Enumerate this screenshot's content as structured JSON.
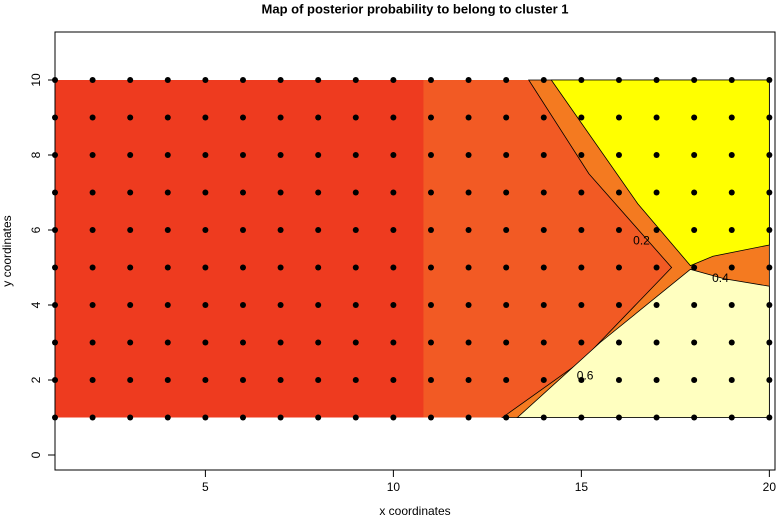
{
  "chart_data": {
    "type": "scatter",
    "title": "Map of posterior probability to belong to cluster  1",
    "x_label": "x coordinates",
    "y_label": "y coordinates",
    "xlim": [
      1,
      20.15
    ],
    "ylim": [
      -0.4,
      11.28
    ],
    "xticks": [
      5,
      10,
      15,
      20
    ],
    "yticks": [
      0,
      2,
      4,
      6,
      8,
      10
    ],
    "regions": [
      {
        "color": "#ee3b1f",
        "x": [
          1,
          20,
          20,
          1
        ],
        "y": [
          1,
          1,
          10,
          10
        ]
      },
      {
        "color": "#f25a24",
        "x": [
          10.8,
          20,
          20,
          10.8
        ],
        "y": [
          1,
          1,
          10,
          10
        ]
      },
      {
        "color": "#f47a20",
        "x": [
          13.6,
          20,
          20,
          12.9,
          15,
          17.4,
          15.2
        ],
        "y": [
          10,
          10,
          1,
          1,
          2.5,
          5,
          7.5
        ]
      },
      {
        "color": "#ffff00",
        "x": [
          14.2,
          20,
          20,
          18.5,
          17.9,
          16.5
        ],
        "y": [
          10,
          10,
          5.6,
          5.3,
          5.05,
          6.7
        ]
      },
      {
        "color": "#ffffc0",
        "x": [
          13.3,
          20,
          20,
          18.8,
          17.9,
          15.5
        ],
        "y": [
          1,
          1,
          4.5,
          4.7,
          4.95,
          3
        ]
      }
    ],
    "contour_labels": [
      {
        "text": "0.4",
        "x": 18.7,
        "y": 4.7
      },
      {
        "text": "0.2",
        "x": 16.6,
        "y": 5.7
      },
      {
        "text": "0.6",
        "x": 15.1,
        "y": 2.1
      }
    ],
    "series": [
      {
        "color": "#000000",
        "x": [
          1,
          2,
          3,
          4,
          5,
          6,
          7,
          8,
          9,
          10,
          11,
          12,
          13,
          14,
          15,
          16,
          17,
          18,
          19,
          20,
          1,
          2,
          3,
          4,
          5,
          6,
          7,
          8,
          9,
          10,
          11,
          12,
          13,
          14,
          15,
          16,
          17,
          18,
          19,
          20,
          1,
          2,
          3,
          4,
          5,
          6,
          7,
          8,
          9,
          10,
          11,
          12,
          13,
          14,
          15,
          16,
          17,
          18,
          19,
          20,
          1,
          2,
          3,
          4,
          5,
          6,
          7,
          8,
          9,
          10,
          11,
          12,
          13,
          14,
          15,
          16,
          17,
          18,
          19,
          20,
          1,
          2,
          3,
          4,
          5,
          6,
          7,
          8,
          9,
          10,
          11,
          12,
          13,
          14,
          15,
          16,
          17,
          18,
          19,
          20,
          1,
          2,
          3,
          4,
          5,
          6,
          7,
          8,
          9,
          10,
          11,
          12,
          13,
          14,
          15,
          16,
          17,
          18,
          19,
          20,
          1,
          2,
          3,
          4,
          5,
          6,
          7,
          8,
          9,
          10,
          11,
          12,
          13,
          14,
          15,
          16,
          17,
          18,
          19,
          20,
          1,
          2,
          3,
          4,
          5,
          6,
          7,
          8,
          9,
          10,
          11,
          12,
          13,
          14,
          15,
          16,
          17,
          18,
          19,
          20,
          1,
          2,
          3,
          4,
          5,
          6,
          7,
          8,
          9,
          10,
          11,
          12,
          13,
          14,
          15,
          16,
          17,
          18,
          19,
          20,
          1,
          2,
          3,
          4,
          5,
          6,
          7,
          8,
          9,
          10,
          11,
          12,
          13,
          14,
          15,
          16,
          17,
          18,
          19,
          20
        ],
        "y": [
          1,
          1,
          1,
          1,
          1,
          1,
          1,
          1,
          1,
          1,
          1,
          1,
          1,
          1,
          1,
          1,
          1,
          1,
          1,
          1,
          2,
          2,
          2,
          2,
          2,
          2,
          2,
          2,
          2,
          2,
          2,
          2,
          2,
          2,
          2,
          2,
          2,
          2,
          2,
          2,
          3,
          3,
          3,
          3,
          3,
          3,
          3,
          3,
          3,
          3,
          3,
          3,
          3,
          3,
          3,
          3,
          3,
          3,
          3,
          3,
          4,
          4,
          4,
          4,
          4,
          4,
          4,
          4,
          4,
          4,
          4,
          4,
          4,
          4,
          4,
          4,
          4,
          4,
          4,
          4,
          5,
          5,
          5,
          5,
          5,
          5,
          5,
          5,
          5,
          5,
          5,
          5,
          5,
          5,
          5,
          5,
          5,
          5,
          5,
          5,
          6,
          6,
          6,
          6,
          6,
          6,
          6,
          6,
          6,
          6,
          6,
          6,
          6,
          6,
          6,
          6,
          6,
          6,
          6,
          6,
          7,
          7,
          7,
          7,
          7,
          7,
          7,
          7,
          7,
          7,
          7,
          7,
          7,
          7,
          7,
          7,
          7,
          7,
          7,
          7,
          8,
          8,
          8,
          8,
          8,
          8,
          8,
          8,
          8,
          8,
          8,
          8,
          8,
          8,
          8,
          8,
          8,
          8,
          8,
          8,
          9,
          9,
          9,
          9,
          9,
          9,
          9,
          9,
          9,
          9,
          9,
          9,
          9,
          9,
          9,
          9,
          9,
          9,
          9,
          9,
          10,
          10,
          10,
          10,
          10,
          10,
          10,
          10,
          10,
          10,
          10,
          10,
          10,
          10,
          10,
          10,
          10,
          10,
          10,
          10
        ]
      }
    ]
  }
}
